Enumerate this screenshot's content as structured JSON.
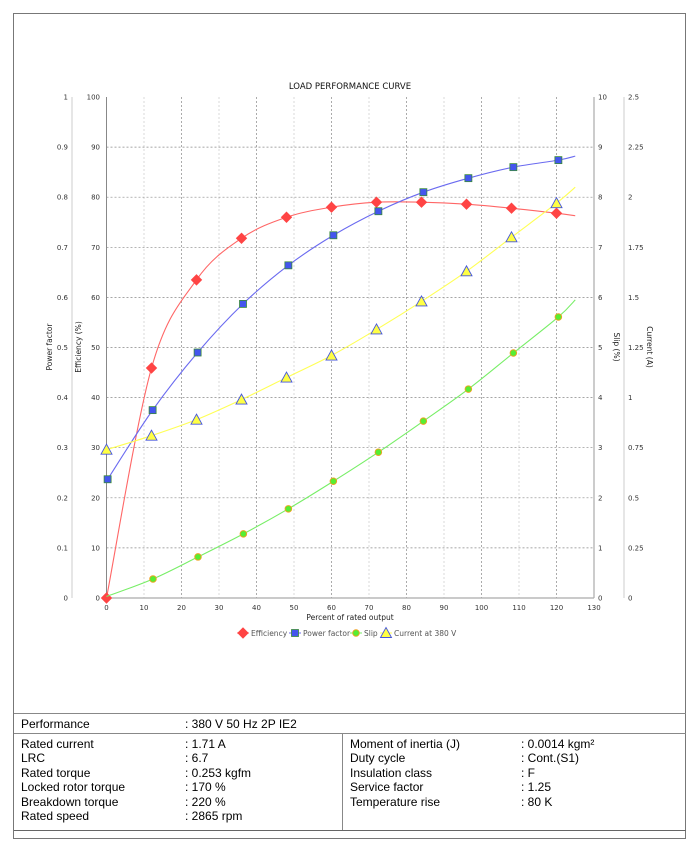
{
  "chart_data": {
    "type": "line",
    "title": "LOAD PERFORMANCE CURVE",
    "xlabel": "Percent of rated output",
    "xlim": [
      0,
      130
    ],
    "xticks": [
      "0",
      "10",
      "20",
      "30",
      "40",
      "50",
      "60",
      "70",
      "80",
      "90",
      "100",
      "110",
      "120",
      "130"
    ],
    "grid": true,
    "legend_position": "bottom",
    "axes": {
      "power_factor": {
        "label": "Power factor",
        "range": [
          0,
          1
        ],
        "ticks": [
          "0",
          "0.1",
          "0.2",
          "0.3",
          "0.4",
          "0.5",
          "0.6",
          "0.7",
          "0.8",
          "0.9",
          "1"
        ]
      },
      "efficiency": {
        "label": "Efficiency (%)",
        "range": [
          0,
          100
        ],
        "ticks": [
          "0",
          "10",
          "20",
          "30",
          "40",
          "50",
          "60",
          "70",
          "80",
          "90",
          "100"
        ]
      },
      "slip": {
        "label": "Slip (%)",
        "range": [
          0,
          10
        ],
        "ticks": [
          "0",
          "1",
          "2",
          "3",
          "4",
          "5",
          "6",
          "7",
          "8",
          "9",
          "10"
        ]
      },
      "current": {
        "label": "Current (A)",
        "range": [
          0,
          2.5
        ],
        "ticks": [
          "0",
          "0.25",
          "0.5",
          "0.75",
          "1",
          "1.25",
          "1.5",
          "1.75",
          "2",
          "2.25",
          "2.5"
        ]
      }
    },
    "series": [
      {
        "name": "Efficiency",
        "axis": "efficiency",
        "color": "#ff4444",
        "line": "#ff6666",
        "marker": "diamond",
        "x": [
          0,
          12,
          24,
          36,
          48,
          60,
          72,
          84,
          96,
          108,
          120
        ],
        "y": [
          0,
          45.9,
          63.5,
          71.8,
          76,
          78,
          79,
          79,
          78.6,
          77.8,
          76.8
        ],
        "curve_end": [
          125,
          76.3
        ]
      },
      {
        "name": "Power factor",
        "axis": "power_factor",
        "color": "#4455ee",
        "line": "#6a6af0",
        "marker": "square",
        "x": [
          0.3,
          12.3,
          24.3,
          36.4,
          48.5,
          60.5,
          72.5,
          84.5,
          96.5,
          108.5,
          120.5
        ],
        "y": [
          0.237,
          0.375,
          0.49,
          0.587,
          0.664,
          0.724,
          0.772,
          0.81,
          0.838,
          0.86,
          0.874
        ],
        "curve_end": [
          125,
          0.882
        ]
      },
      {
        "name": "Slip",
        "axis": "slip",
        "color": "#55ee33",
        "line": "#77ee66",
        "marker": "circle",
        "x": [
          12.4,
          24.4,
          36.5,
          48.5,
          60.5,
          72.5,
          84.5,
          96.5,
          108.5,
          120.5
        ],
        "y": [
          0.38,
          0.82,
          1.28,
          1.78,
          2.33,
          2.91,
          3.53,
          4.17,
          4.89,
          5.61
        ],
        "curve_start": [
          0,
          0.03
        ],
        "curve_end": [
          125,
          5.95
        ]
      },
      {
        "name": "Current at 380 V",
        "axis": "current",
        "color": "#ffff44",
        "line": "#ffff55",
        "marker": "triangle",
        "x": [
          0,
          12,
          24,
          36,
          48,
          60,
          72,
          84,
          96,
          108,
          120
        ],
        "y": [
          0.74,
          0.81,
          0.89,
          0.99,
          1.1,
          1.21,
          1.34,
          1.48,
          1.63,
          1.8,
          1.97
        ],
        "curve_end": [
          125,
          2.05
        ]
      }
    ]
  },
  "specs": {
    "performance": {
      "label": "Performance",
      "value": ": 380 V 50 Hz 2P IE2"
    },
    "left": [
      {
        "label": "Rated current",
        "value": ": 1.71 A"
      },
      {
        "label": "LRC",
        "value": ": 6.7"
      },
      {
        "label": "Rated torque",
        "value": ": 0.253 kgfm"
      },
      {
        "label": "Locked rotor torque",
        "value": ": 170 %"
      },
      {
        "label": "Breakdown torque",
        "value": ": 220 %"
      },
      {
        "label": "Rated speed",
        "value": ": 2865 rpm"
      }
    ],
    "right": [
      {
        "label": "Moment of inertia (J)",
        "value": ": 0.0014 kgm²"
      },
      {
        "label": "Duty cycle",
        "value": ": Cont.(S1)"
      },
      {
        "label": "Insulation class",
        "value": ": F"
      },
      {
        "label": "Service factor",
        "value": ": 1.25"
      },
      {
        "label": "Temperature rise",
        "value": ": 80 K"
      }
    ]
  }
}
